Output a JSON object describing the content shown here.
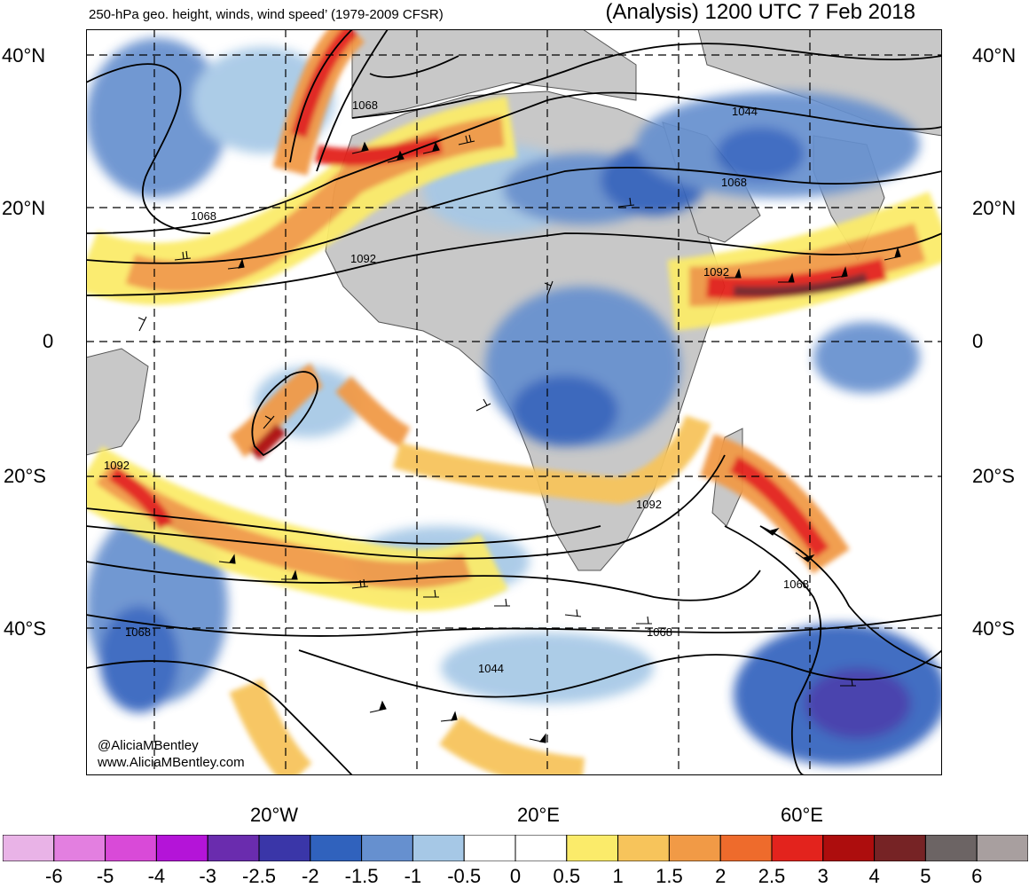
{
  "header": {
    "left_title": "250-hPa geo. height, winds, wind speed’ (1979-2009 CFSR)",
    "right_title": "(Analysis) 1200 UTC 7 Feb 2018"
  },
  "latitude_labels": {
    "left": [
      "40°N",
      "20°N",
      "0",
      "20°S",
      "40°S"
    ],
    "right": [
      "40°N",
      "20°N",
      "0",
      "20°S",
      "40°S"
    ]
  },
  "longitude_labels": [
    "20°W",
    "20°E",
    "60°E"
  ],
  "contour_labels": [
    "1068",
    "1092",
    "1044",
    "1068",
    "1092",
    "1092",
    "1068",
    "1068",
    "1044",
    "1068",
    "1092",
    "1068"
  ],
  "credits": {
    "handle": "@AliciaMBentley",
    "site": "www.AliciaMBentley.com"
  },
  "colorbar": {
    "colors": [
      "#e9b3e7",
      "#e37fe0",
      "#d94ad8",
      "#b414d8",
      "#6a2cae",
      "#3a36a8",
      "#3062bd",
      "#6690cf",
      "#a6c8e6",
      "#ffffff",
      "#ffffff",
      "#fbeb6a",
      "#f7c45b",
      "#f19a46",
      "#ee6b2c",
      "#e3231d",
      "#ad0d0d",
      "#762325",
      "#6c6464",
      "#a89f9f"
    ],
    "labels": [
      "-6",
      "-5",
      "-4",
      "-3",
      "-2.5",
      "-2",
      "-1.5",
      "-1",
      "-0.5",
      "0",
      "0.5",
      "1",
      "1.5",
      "2",
      "2.5",
      "3",
      "4",
      "5",
      "6"
    ]
  },
  "palette": {
    "land": "#c8c8c8",
    "coast": "#555555",
    "grid": "#000000",
    "contour": "#000000"
  }
}
